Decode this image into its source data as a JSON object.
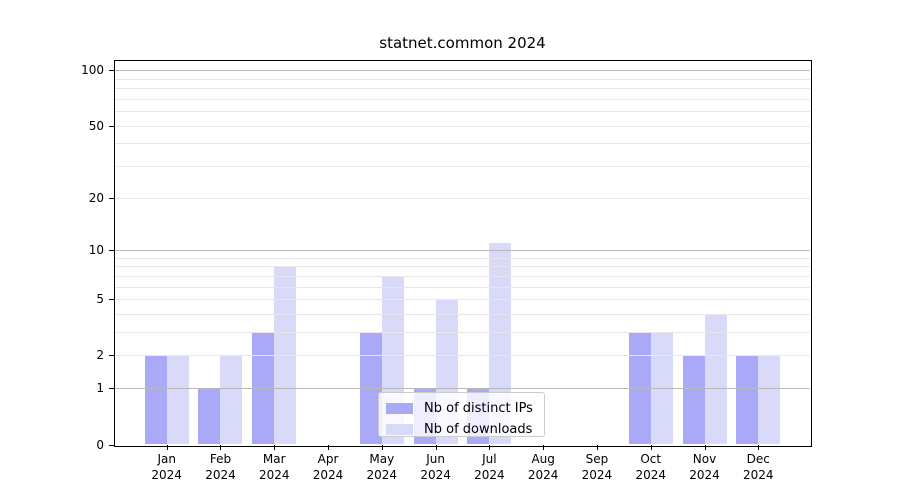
{
  "figure_title": "statnet.common 2024",
  "chart_data": {
    "type": "bar",
    "title": "statnet.common 2024",
    "xlabel": "",
    "ylabel": "",
    "categories": [
      "Jan 2024",
      "Feb 2024",
      "Mar 2024",
      "Apr 2024",
      "May 2024",
      "Jun 2024",
      "Jul 2024",
      "Aug 2024",
      "Sep 2024",
      "Oct 2024",
      "Nov 2024",
      "Dec 2024"
    ],
    "x_tick_labels_line1": [
      "Jan",
      "Feb",
      "Mar",
      "Apr",
      "May",
      "Jun",
      "Jul",
      "Aug",
      "Sep",
      "Oct",
      "Nov",
      "Dec"
    ],
    "x_tick_labels_line2": [
      "2024",
      "2024",
      "2024",
      "2024",
      "2024",
      "2024",
      "2024",
      "2024",
      "2024",
      "2024",
      "2024",
      "2024"
    ],
    "series": [
      {
        "name": "Nb of distinct IPs",
        "color": "#a9a9f7",
        "values": [
          2,
          1,
          3,
          0,
          3,
          1,
          1,
          0,
          0,
          3,
          2,
          2
        ]
      },
      {
        "name": "Nb of downloads",
        "color": "#d9d9f9",
        "values": [
          2,
          2,
          8,
          0,
          7,
          5,
          11,
          0,
          0,
          3,
          4,
          2
        ]
      }
    ],
    "y_axis": {
      "scale": "log1p",
      "tick_values": [
        0,
        1,
        2,
        5,
        10,
        20,
        50,
        100
      ],
      "tick_labels": [
        "0",
        "1",
        "2",
        "5",
        "10",
        "20",
        "50",
        "100"
      ],
      "major_grid_values": [
        1,
        10,
        100
      ],
      "minor_grid_values": [
        2,
        3,
        4,
        5,
        6,
        7,
        8,
        9,
        20,
        30,
        40,
        50,
        60,
        70,
        80,
        90
      ],
      "ylim": [
        0,
        115
      ]
    },
    "legend": {
      "entries": [
        "Nb of distinct IPs",
        "Nb of downloads"
      ],
      "position": "lower-center-inside"
    },
    "grid": true
  },
  "colors": {
    "bar_dark": "#a9a9f7",
    "bar_light": "#d9d9f9",
    "major_grid": "#b8b8b8",
    "minor_grid": "#e7e7e7",
    "spine": "#000000",
    "legend_border": "#cccccc",
    "legend_background": "rgba(255,255,255,0.8)"
  }
}
